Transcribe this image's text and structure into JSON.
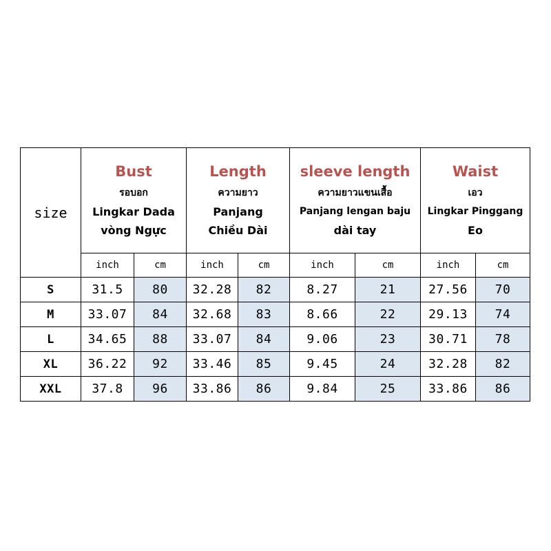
{
  "table": {
    "size_header": "size",
    "columns": [
      {
        "title": "Bust",
        "lines": [
          "รอบอก",
          "Lingkar Dada",
          "vòng Ngực"
        ]
      },
      {
        "title": "Length",
        "lines": [
          "ความยาว",
          "Panjang",
          "Chiều Dài"
        ]
      },
      {
        "title": "sleeve length",
        "lines": [
          "ความยาวแขนเสื้อ",
          "Panjang lengan baju",
          "dài tay"
        ]
      },
      {
        "title": "Waist",
        "lines": [
          "เอว",
          "Lingkar Pinggang",
          "Eo"
        ]
      }
    ],
    "units": {
      "inch": "inch",
      "cm": "cm"
    },
    "rows": [
      {
        "size": "S",
        "values": [
          "31.5",
          "80",
          "32.28",
          "82",
          "8.27",
          "21",
          "27.56",
          "70"
        ]
      },
      {
        "size": "M",
        "values": [
          "33.07",
          "84",
          "32.68",
          "83",
          "8.66",
          "22",
          "29.13",
          "74"
        ]
      },
      {
        "size": "L",
        "values": [
          "34.65",
          "88",
          "33.07",
          "84",
          "9.06",
          "23",
          "30.71",
          "78"
        ]
      },
      {
        "size": "XL",
        "values": [
          "36.22",
          "92",
          "33.46",
          "85",
          "9.45",
          "24",
          "32.28",
          "82"
        ]
      },
      {
        "size": "XXL",
        "values": [
          "37.8",
          "96",
          "33.86",
          "86",
          "9.84",
          "25",
          "33.86",
          "86"
        ]
      }
    ]
  },
  "colors": {
    "title_red": "#b85450",
    "cm_cell_bg": "#dce6f1",
    "border": "#000000"
  }
}
